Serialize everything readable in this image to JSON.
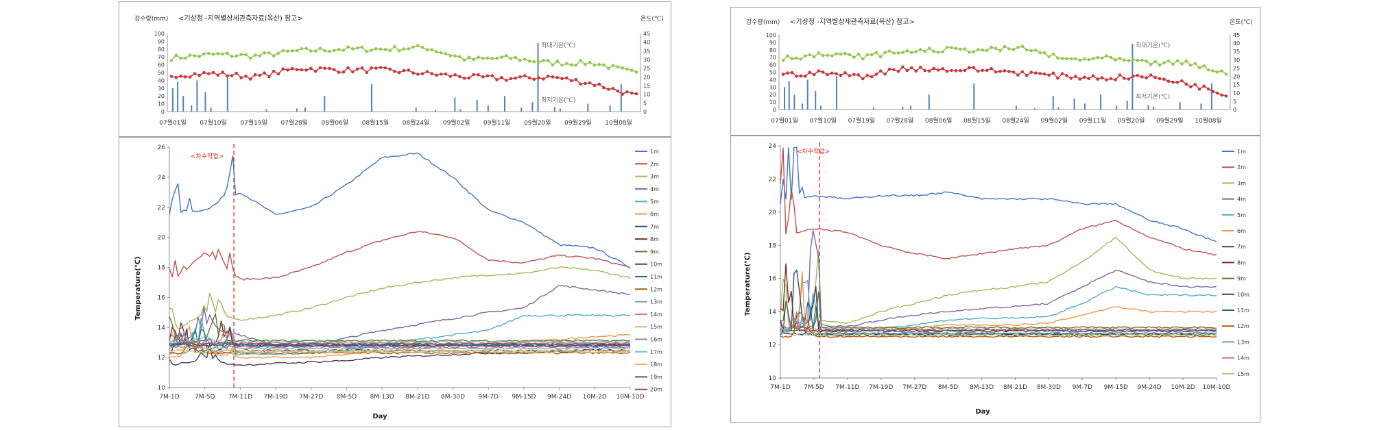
{
  "panels": [
    {
      "weather": {
        "title": "<기상청 -지역별상세관측자료(옥산) 참고>",
        "left_axis_label": "강수량(mm)",
        "right_axis_label": "온도(℃)",
        "left_ticks": [
          "0",
          "10",
          "20",
          "30",
          "40",
          "50",
          "60",
          "70",
          "80",
          "90",
          "100"
        ],
        "right_ticks": [
          "0",
          "5",
          "10",
          "15",
          "20",
          "25",
          "30",
          "35",
          "40",
          "45"
        ],
        "x_ticks": [
          "07월01일",
          "07월10일",
          "07월19일",
          "07월28일",
          "08월06일",
          "08월15일",
          "08월24일",
          "09월02일",
          "09월11일",
          "09월20일",
          "09월29일",
          "10월08일"
        ],
        "max_label": "최대기온(℃)",
        "min_label": "최저기온(℃)"
      },
      "temp": {
        "ylabel": "Temperature(℃)",
        "xlabel": "Day",
        "y_ticks": [
          "10",
          "12",
          "14",
          "16",
          "18",
          "20",
          "22",
          "24",
          "26"
        ],
        "x_ticks": [
          "7M-1D",
          "7M-5D",
          "7M-11D",
          "7M-19D",
          "7M-27D",
          "8M-5D",
          "8M-13D",
          "8M-21D",
          "8M-30D",
          "9M-7D",
          "9M-15D",
          "9M-24D",
          "10M-2D",
          "10M-10D"
        ],
        "annotation": "<차수작업>",
        "legend": [
          "1m",
          "2m",
          "3m",
          "4m",
          "5m",
          "6m",
          "7m",
          "8m",
          "9m",
          "10m",
          "11m",
          "12m",
          "13m",
          "14m",
          "15m",
          "16m",
          "17m",
          "18m",
          "19m",
          "20m"
        ]
      }
    },
    {
      "weather": {
        "title": "<기상청 -지역별상세관측자료(옥산) 참고>",
        "left_axis_label": "강수량(mm)",
        "right_axis_label": "온도(℃)",
        "left_ticks": [
          "0",
          "10",
          "20",
          "30",
          "40",
          "50",
          "60",
          "70",
          "80",
          "90",
          "100"
        ],
        "right_ticks": [
          "0",
          "5",
          "10",
          "15",
          "20",
          "25",
          "30",
          "35",
          "40",
          "45"
        ],
        "x_ticks": [
          "07월01일",
          "07월10일",
          "07월19일",
          "07월28일",
          "08월06일",
          "08월15일",
          "08월24일",
          "09월02일",
          "09월11일",
          "09월20일",
          "09월29일",
          "10월08일"
        ],
        "max_label": "최대기온(℃)",
        "min_label": "최저기온(℃)"
      },
      "temp": {
        "ylabel": "Temperature(℃)",
        "xlabel": "Day",
        "y_ticks": [
          "10",
          "12",
          "14",
          "16",
          "18",
          "20",
          "22",
          "24"
        ],
        "x_ticks": [
          "7M-1D",
          "7M-5D",
          "7M-11D",
          "7M-19D",
          "7M-27D",
          "8M-5D",
          "8M-13D",
          "8M-21D",
          "8M-30D",
          "9M-7D",
          "9M-15D",
          "9M-24D",
          "10M-2D",
          "10M-10D"
        ],
        "annotation": "<차수작업>",
        "legend": [
          "1m",
          "2m",
          "3m",
          "4m",
          "5m",
          "6m",
          "7m",
          "8m",
          "9m",
          "10m",
          "11m",
          "12m",
          "13m",
          "14m",
          "15m"
        ]
      }
    }
  ],
  "colors": [
    "#4472c4",
    "#c0504d",
    "#9bbb59",
    "#8064a2",
    "#4bacc6",
    "#f79646",
    "#2c4d75",
    "#772c2a",
    "#5f7530",
    "#4d3b62",
    "#276a7c",
    "#b65708",
    "#729aca",
    "#cd7371",
    "#afc97a",
    "#9983b5",
    "#6fbdd1",
    "#f9ab6b",
    "#3a5f8f",
    "#a14440"
  ],
  "max_temp_color": "#92c84d",
  "min_temp_color": "#c9383a",
  "rain_color": "#4f81bd",
  "annotation_color": "#e02020",
  "chart_data": [
    {
      "type": "line",
      "title": "<기상청 -지역별상세관측자료(옥산) 참고>",
      "x": [
        "07월01일",
        "07월10일",
        "07월19일",
        "07월28일",
        "08월06일",
        "08월15일",
        "08월24일",
        "09월02일",
        "09월11일",
        "09월20일",
        "09월29일",
        "10월08일"
      ],
      "series": [
        {
          "name": "최대기온(℃)",
          "values": [
            31,
            33,
            32,
            35,
            36,
            36,
            37,
            30,
            31,
            28,
            28,
            22
          ]
        },
        {
          "name": "최저기온(℃)",
          "values": [
            21,
            22,
            20,
            25,
            24,
            24,
            22,
            20,
            19,
            20,
            16,
            9
          ]
        },
        {
          "name": "강수량(mm)",
          "values": [
            40,
            30,
            25,
            20,
            40,
            5,
            15,
            40,
            20,
            88,
            10,
            30
          ]
        }
      ],
      "ylim": [
        0,
        100
      ],
      "y2lim": [
        0,
        45
      ]
    },
    {
      "type": "line",
      "x": [
        "7M-1D",
        "7M-5D",
        "7M-11D",
        "7M-19D",
        "7M-27D",
        "8M-5D",
        "8M-13D",
        "8M-21D",
        "8M-30D",
        "9M-7D",
        "9M-15D",
        "9M-24D",
        "10M-2D",
        "10M-10D"
      ],
      "ylim": [
        10,
        26
      ],
      "series": [
        {
          "name": "1m",
          "values": [
            21.5,
            21.8,
            23.0,
            21.5,
            22.0,
            23.5,
            25.3,
            25.6,
            24.0,
            21.8,
            21.0,
            19.5,
            19.3,
            18.0
          ]
        },
        {
          "name": "2m",
          "values": [
            16.8,
            19.0,
            17.2,
            17.3,
            18.0,
            19.0,
            19.8,
            20.4,
            20.0,
            18.5,
            18.3,
            18.8,
            18.6,
            18.0
          ]
        },
        {
          "name": "3m",
          "values": [
            13.5,
            15.0,
            14.5,
            14.8,
            15.3,
            16.0,
            16.6,
            17.0,
            17.3,
            17.5,
            17.6,
            18.0,
            17.8,
            17.3
          ]
        },
        {
          "name": "4m",
          "values": [
            12.5,
            14.0,
            13.5,
            12.8,
            12.8,
            13.3,
            13.8,
            14.2,
            14.6,
            15.0,
            15.3,
            16.8,
            16.5,
            16.2
          ]
        },
        {
          "name": "5m",
          "values": [
            12.2,
            12.5,
            12.2,
            12.2,
            12.3,
            12.5,
            12.8,
            13.2,
            13.5,
            13.8,
            14.8,
            14.8,
            14.8,
            14.8
          ]
        },
        {
          "name": "6m",
          "values": [
            12.0,
            12.3,
            12.0,
            12.0,
            12.0,
            12.2,
            12.4,
            12.6,
            12.8,
            12.9,
            13.0,
            13.2,
            13.4,
            13.5
          ]
        },
        {
          "name": "10m",
          "values": [
            11.5,
            11.8,
            11.5,
            11.6,
            11.7,
            11.8,
            12.0,
            12.1,
            12.2,
            12.3,
            12.3,
            12.4,
            12.5,
            12.5
          ]
        },
        {
          "name": "20m",
          "values": [
            12.9,
            12.9,
            12.9,
            12.9,
            12.9,
            12.9,
            12.9,
            12.9,
            12.9,
            12.9,
            12.9,
            12.9,
            12.9,
            12.9
          ]
        }
      ]
    },
    {
      "type": "line",
      "title": "<기상청 -지역별상세관측자료(옥산) 참고>",
      "x": [
        "07월01일",
        "07월10일",
        "07월19일",
        "07월28일",
        "08월06일",
        "08월15일",
        "08월24일",
        "09월02일",
        "09월11일",
        "09월20일",
        "09월29일",
        "10월08일"
      ],
      "series": [
        {
          "name": "최대기온(℃)",
          "values": [
            31,
            33,
            32,
            35,
            36,
            36,
            37,
            30,
            31,
            28,
            28,
            22
          ]
        },
        {
          "name": "최저기온(℃)",
          "values": [
            21,
            22,
            20,
            25,
            24,
            24,
            22,
            20,
            19,
            20,
            16,
            9
          ]
        },
        {
          "name": "강수량(mm)",
          "values": [
            40,
            30,
            25,
            20,
            40,
            5,
            15,
            40,
            20,
            88,
            10,
            30
          ]
        }
      ],
      "ylim": [
        0,
        100
      ],
      "y2lim": [
        0,
        45
      ]
    },
    {
      "type": "line",
      "x": [
        "7M-1D",
        "7M-5D",
        "7M-11D",
        "7M-19D",
        "7M-27D",
        "8M-5D",
        "8M-13D",
        "8M-21D",
        "8M-30D",
        "9M-7D",
        "9M-15D",
        "9M-24D",
        "10M-2D",
        "10M-10D"
      ],
      "ylim": [
        10,
        24
      ],
      "series": [
        {
          "name": "1m",
          "values": [
            20.5,
            21.0,
            20.8,
            21.0,
            21.0,
            21.2,
            20.8,
            20.8,
            20.8,
            20.5,
            20.5,
            19.5,
            19.0,
            18.2
          ]
        },
        {
          "name": "2m",
          "values": [
            18.5,
            19.0,
            18.8,
            18.0,
            17.5,
            17.2,
            17.5,
            17.8,
            18.0,
            19.0,
            19.5,
            18.5,
            17.8,
            17.4
          ]
        },
        {
          "name": "3m",
          "values": [
            13.0,
            13.5,
            13.3,
            14.0,
            14.5,
            15.0,
            15.3,
            15.5,
            15.8,
            17.0,
            18.5,
            16.5,
            16.0,
            16.0
          ]
        },
        {
          "name": "4m",
          "values": [
            13.0,
            13.2,
            13.1,
            13.5,
            13.8,
            14.0,
            14.2,
            14.3,
            14.5,
            15.5,
            16.5,
            15.8,
            15.5,
            15.5
          ]
        },
        {
          "name": "5m",
          "values": [
            12.8,
            13.0,
            12.9,
            13.0,
            13.2,
            13.5,
            13.6,
            13.6,
            13.7,
            14.5,
            15.5,
            15.0,
            15.0,
            15.0
          ]
        },
        {
          "name": "6m",
          "values": [
            12.7,
            12.8,
            12.8,
            12.9,
            13.0,
            13.2,
            13.2,
            13.2,
            13.3,
            13.8,
            14.3,
            14.0,
            14.0,
            14.0
          ]
        },
        {
          "name": "15m",
          "values": [
            12.6,
            12.6,
            12.6,
            12.6,
            12.6,
            12.6,
            12.6,
            12.6,
            12.6,
            12.6,
            12.6,
            12.6,
            12.6,
            12.6
          ]
        }
      ]
    }
  ]
}
